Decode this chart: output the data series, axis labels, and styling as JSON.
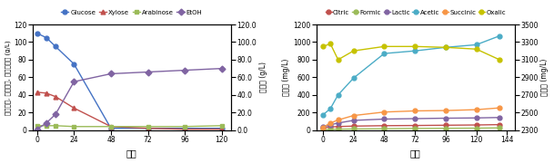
{
  "left_chart": {
    "xlabel": "시간",
    "ylabel_left": "글루코스, 자일로스, 아라비노스 (g/L)",
    "ylabel_right": "에탄올 (g/L)",
    "x": [
      0,
      6,
      12,
      24,
      48,
      72,
      96,
      120
    ],
    "glucose": [
      110,
      105,
      95,
      75,
      2,
      2,
      2,
      2
    ],
    "xylose": [
      43,
      42,
      38,
      25,
      4,
      2,
      1,
      1
    ],
    "arabinose": [
      5,
      5,
      5,
      4,
      4,
      4,
      4,
      5
    ],
    "etoh": [
      1,
      8,
      18,
      55,
      64,
      66,
      68,
      70
    ],
    "ylim_left": [
      0,
      120
    ],
    "ylim_right": [
      0.0,
      120.0
    ],
    "yticks_left": [
      0,
      20,
      40,
      60,
      80,
      100,
      120
    ],
    "yticks_right": [
      0.0,
      20.0,
      40.0,
      60.0,
      80.0,
      100.0,
      120.0
    ],
    "xticks": [
      0,
      24,
      48,
      72,
      96,
      120
    ],
    "colors": {
      "glucose": "#4472c4",
      "xylose": "#c0504d",
      "arabinose": "#9bbb59",
      "etoh": "#8064a2"
    },
    "legend_labels": [
      "Glucose",
      "Xylose",
      "Arabinose",
      "EtOH"
    ]
  },
  "right_chart": {
    "xlabel": "시간",
    "ylabel_left": "유기산 (mg/L)",
    "ylabel_right": "슈퍼릭 (mg/L)",
    "x": [
      0,
      6,
      12,
      24,
      48,
      72,
      96,
      120,
      138
    ],
    "citric": [
      30,
      35,
      40,
      45,
      50,
      52,
      55,
      58,
      62
    ],
    "formic": [
      5,
      8,
      10,
      12,
      15,
      18,
      20,
      22,
      25
    ],
    "lactic": [
      40,
      60,
      80,
      110,
      125,
      130,
      135,
      138,
      143
    ],
    "acetic": [
      170,
      245,
      400,
      590,
      870,
      900,
      940,
      970,
      1070
    ],
    "succinic": [
      30,
      80,
      115,
      165,
      205,
      218,
      222,
      232,
      252
    ],
    "oxalic": [
      3250,
      3280,
      3100,
      3200,
      3250,
      3250,
      3240,
      3220,
      3100
    ],
    "ylim_left": [
      0,
      1200
    ],
    "ylim_right": [
      2300,
      3500
    ],
    "yticks_left": [
      0,
      200,
      400,
      600,
      800,
      1000,
      1200
    ],
    "yticks_right": [
      2300,
      2500,
      2700,
      2900,
      3100,
      3300,
      3500
    ],
    "xticks": [
      0,
      24,
      48,
      72,
      96,
      120,
      144
    ],
    "colors": {
      "citric": "#c0504d",
      "formic": "#9bbb59",
      "lactic": "#8064a2",
      "acetic": "#4bacc6",
      "succinic": "#f79646",
      "oxalic": "#c6c200"
    },
    "legend_labels": [
      "Citric",
      "Formic",
      "Lactic",
      "Acetic",
      "Succinic",
      "Oxalic"
    ]
  }
}
